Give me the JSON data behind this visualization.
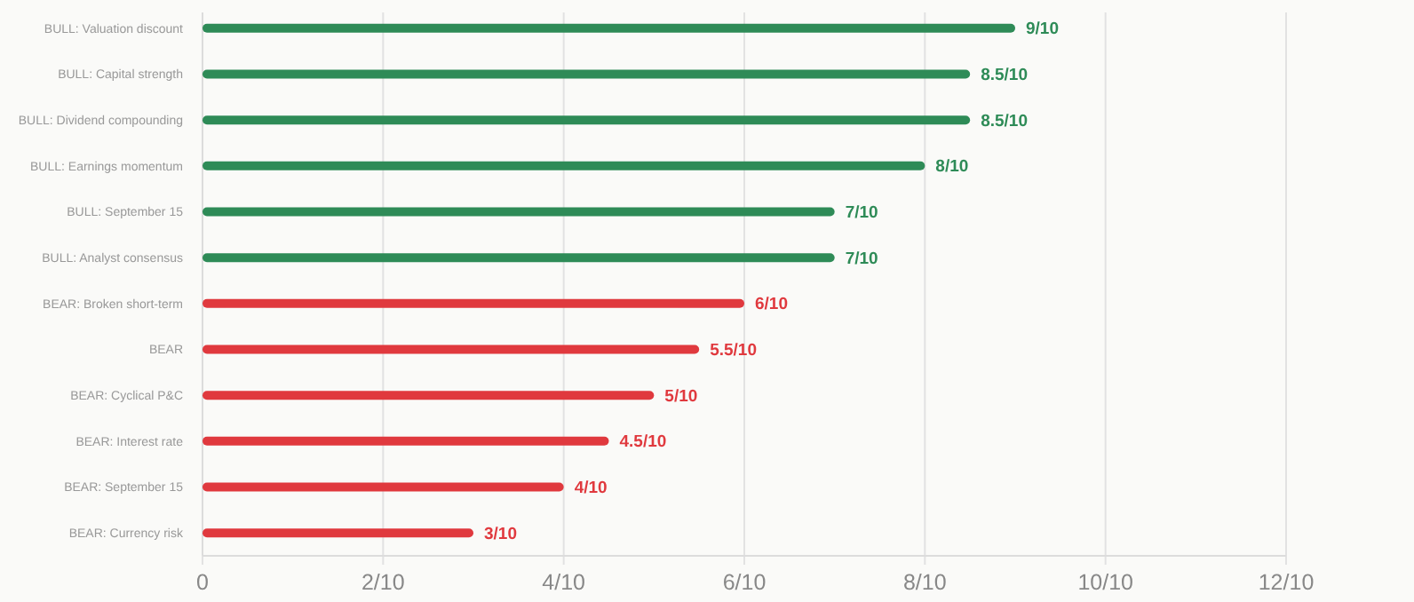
{
  "chart_data": {
    "type": "bar",
    "orientation": "horizontal",
    "categories": [
      "BULL: Valuation discount",
      "BULL: Capital strength",
      "BULL: Dividend compounding",
      "BULL: Earnings momentum",
      "BULL: September 15",
      "BULL: Analyst consensus",
      "BEAR: Broken short-term",
      "BEAR",
      "BEAR: Cyclical P&C",
      "BEAR: Interest rate",
      "BEAR: September 15",
      "BEAR: Currency risk"
    ],
    "values": [
      0.9,
      0.85,
      0.85,
      0.8,
      0.7,
      0.7,
      0.6,
      0.55,
      0.5,
      0.45,
      0.4,
      0.3
    ],
    "colors": [
      "#2e8b57",
      "#2e8b57",
      "#2e8b57",
      "#2e8b57",
      "#2e8b57",
      "#2e8b57",
      "#e0393e",
      "#e0393e",
      "#e0393e",
      "#e0393e",
      "#e0393e",
      "#e0393e"
    ],
    "value_labels": [
      "9/10",
      "8.5/10",
      "8.5/10",
      "8/10",
      "7/10",
      "7/10",
      "6/10",
      "5.5/10",
      "5/10",
      "4.5/10",
      "4/10",
      "3/10"
    ],
    "xlim": [
      0,
      1.2
    ],
    "xticks": [
      0,
      {
        "value": 0.2,
        "label": "2/10"
      },
      {
        "value": 0.4,
        "label": "4/10"
      },
      {
        "value": 0.6,
        "label": "6/10"
      },
      {
        "value": 0.8,
        "label": "8/10"
      },
      {
        "value": 1,
        "label": "10/10"
      },
      {
        "value": 1.2,
        "label": "12/10"
      }
    ],
    "grid": "x"
  }
}
